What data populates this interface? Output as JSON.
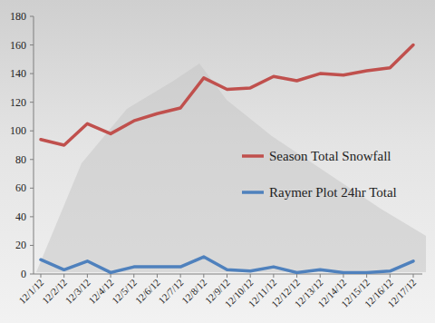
{
  "chart_data": {
    "type": "line",
    "categories": [
      "12/1/12",
      "12/2/12",
      "12/3/12",
      "12/4/12",
      "12/5/12",
      "12/6/12",
      "12/7/12",
      "12/8/12",
      "12/9/12",
      "12/10/12",
      "12/11/12",
      "12/12/12",
      "12/13/12",
      "12/14/12",
      "12/15/12",
      "12/16/12",
      "12/17/12"
    ],
    "series": [
      {
        "name": "Season Total Snowfall",
        "color": "#c0504d",
        "values": [
          94,
          90,
          105,
          98,
          107,
          112,
          116,
          137,
          129,
          130,
          138,
          135,
          140,
          139,
          142,
          144,
          160
        ]
      },
      {
        "name": "Raymer Plot 24hr Total",
        "color": "#4f81bd",
        "values": [
          10,
          3,
          9,
          1,
          5,
          5,
          5,
          12,
          3,
          2,
          5,
          1,
          3,
          1,
          1,
          2,
          9
        ]
      }
    ],
    "ylim": [
      0,
      180
    ],
    "yticks": [
      0,
      20,
      40,
      60,
      80,
      100,
      120,
      140,
      160,
      180
    ],
    "grid": false,
    "legend": "right"
  }
}
